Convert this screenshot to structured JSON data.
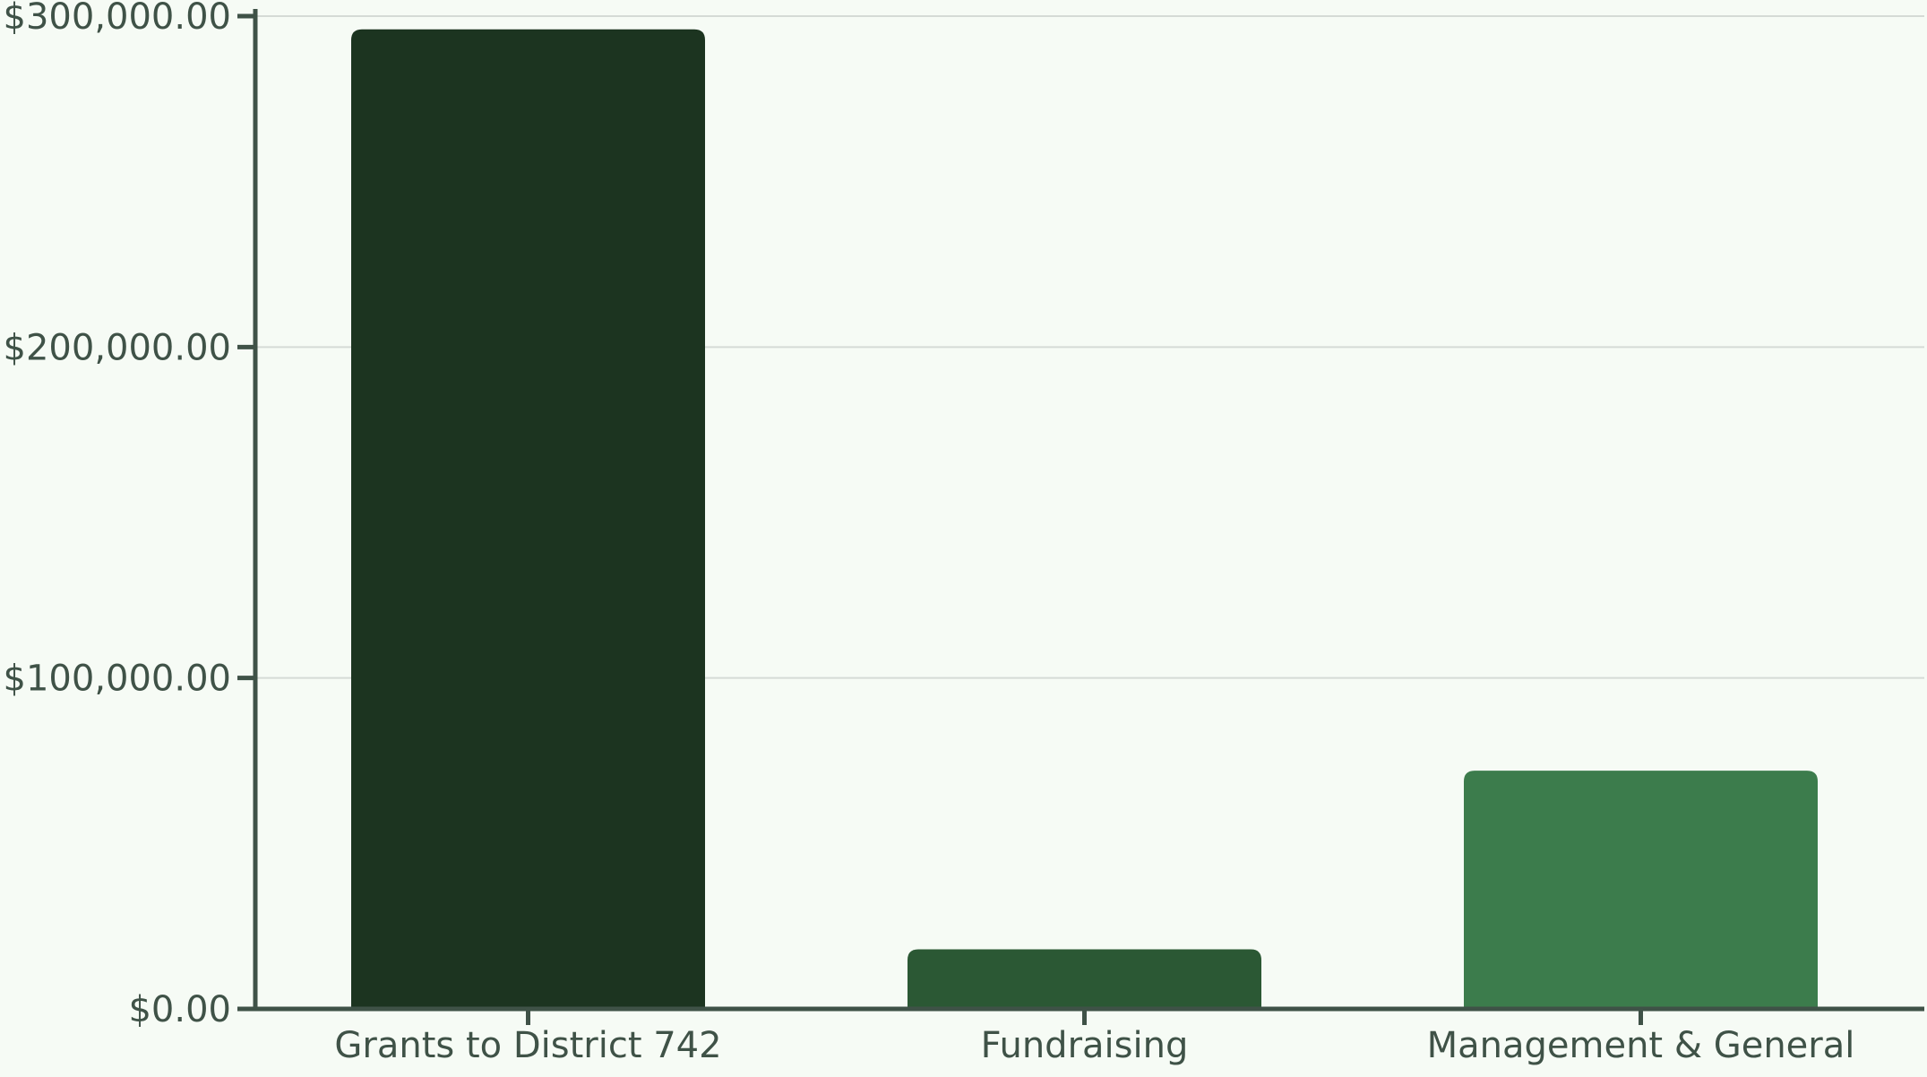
{
  "chart_data": {
    "type": "bar",
    "categories": [
      "Grants to District 742",
      "Fundraising",
      "Management & General"
    ],
    "values": [
      296000,
      18000,
      72000
    ],
    "title": "",
    "xlabel": "",
    "ylabel": "",
    "ylim": [
      0,
      300000
    ],
    "yticks": [
      0,
      100000,
      200000,
      300000
    ],
    "ytick_labels": [
      "$0.00",
      "$100,000.00",
      "$200,000.00",
      "$300,000.00"
    ],
    "grid": true,
    "bar_colors": [
      "#1c3420",
      "#2b5834",
      "#3c7c4c"
    ],
    "axis_color": "#3f5247",
    "grid_color": "#d5dbd6",
    "background": "#f6fbf5"
  }
}
